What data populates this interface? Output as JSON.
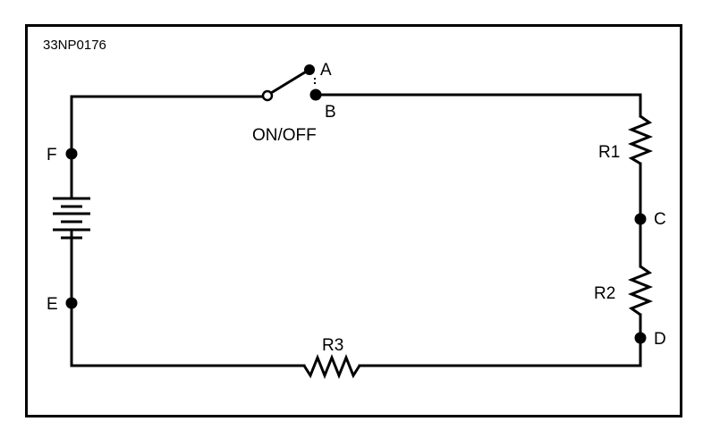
{
  "figure": {
    "id": "33NP0176"
  },
  "switch": {
    "label": "ON/OFF",
    "terminal_a": "A",
    "terminal_b": "B"
  },
  "points": {
    "c": "C",
    "d": "D",
    "e": "E",
    "f": "F"
  },
  "resistors": {
    "r1": "R1",
    "r2": "R2",
    "r3": "R3"
  }
}
